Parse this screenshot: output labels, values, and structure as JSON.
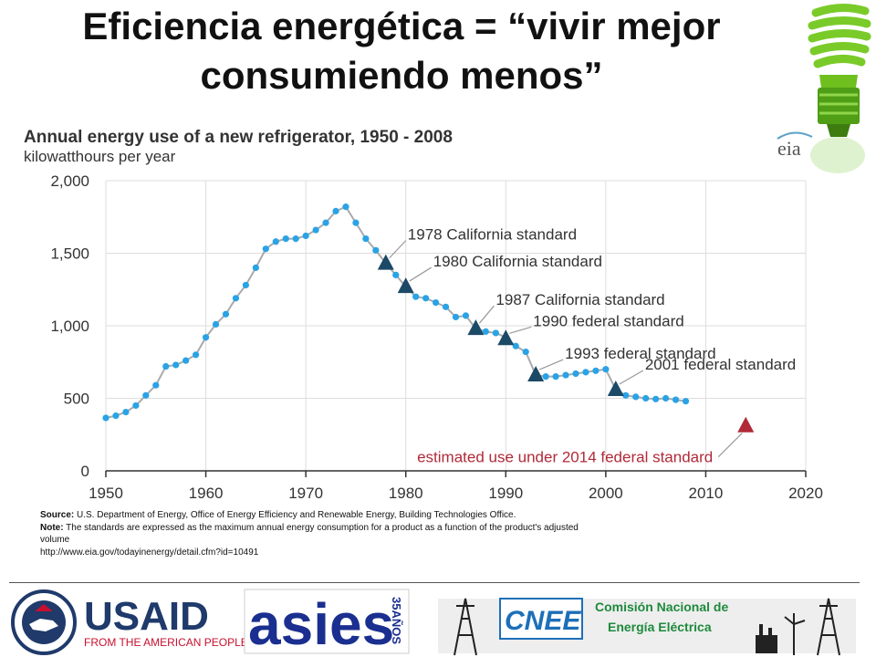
{
  "slide": {
    "title_line1": "Eficiencia energética = “vivir mejor",
    "title_line2": "consumiendo menos”"
  },
  "chart_data": {
    "type": "line",
    "title": "Annual energy use of a new refrigerator, 1950 - 2008",
    "ylabel": "kilowatthours per year",
    "xlabel": "",
    "xlim": [
      1950,
      2020
    ],
    "ylim": [
      0,
      2000
    ],
    "x_ticks": [
      1950,
      1960,
      1970,
      1980,
      1990,
      2000,
      2010,
      2020
    ],
    "y_ticks": [
      0,
      500,
      1000,
      1500,
      2000
    ],
    "y_tick_labels": [
      "0",
      "500",
      "1,000",
      "1,500",
      "2,000"
    ],
    "grid": true,
    "series": [
      {
        "x": [
          1950,
          1951,
          1952,
          1953,
          1954,
          1955,
          1956,
          1957,
          1958,
          1959,
          1960,
          1961,
          1962,
          1963,
          1964,
          1965,
          1966,
          1967,
          1968,
          1969,
          1970,
          1971,
          1972,
          1973,
          1974,
          1975,
          1976,
          1977,
          1978,
          1979,
          1980,
          1981,
          1982,
          1983,
          1984,
          1985,
          1986,
          1987,
          1988,
          1989,
          1990,
          1991,
          1992,
          1993,
          1994,
          1995,
          1996,
          1997,
          1998,
          1999,
          2000,
          2001,
          2002,
          2003,
          2004,
          2005,
          2006,
          2007,
          2008
        ],
        "y": [
          365,
          380,
          405,
          450,
          520,
          590,
          720,
          730,
          760,
          800,
          920,
          1010,
          1080,
          1190,
          1280,
          1400,
          1530,
          1580,
          1600,
          1600,
          1620,
          1660,
          1710,
          1790,
          1820,
          1710,
          1600,
          1520,
          1430,
          1350,
          1270,
          1200,
          1190,
          1160,
          1130,
          1060,
          1070,
          980,
          960,
          950,
          920,
          860,
          820,
          660,
          650,
          650,
          660,
          670,
          680,
          690,
          700,
          560,
          520,
          510,
          500,
          495,
          500,
          490,
          480
        ],
        "color": "#29a3e6"
      }
    ],
    "standards": [
      {
        "year": 1978,
        "value": 1430,
        "label": "1978 California standard"
      },
      {
        "year": 1980,
        "value": 1270,
        "label": "1980 California standard"
      },
      {
        "year": 1987,
        "value": 980,
        "label": "1987 California standard"
      },
      {
        "year": 1990,
        "value": 910,
        "label": "1990 federal standard"
      },
      {
        "year": 1993,
        "value": 660,
        "label": "1993 federal standard"
      },
      {
        "year": 2001,
        "value": 560,
        "label": "2001 federal standard"
      }
    ],
    "estimate": {
      "year": 2014,
      "value": 310,
      "label": "estimated use under 2014 federal standard"
    },
    "colors": {
      "points": "#29a3e6",
      "line": "#aaaaaa",
      "standard": "#1c4966",
      "estimate": "#b02a38",
      "grid": "#dddddd"
    }
  },
  "notes": {
    "source_label": "Source:",
    "source_text": "U.S. Department of Energy, Office of Energy Efficiency and Renewable Energy, Building Technologies Office.",
    "note_label": "Note:",
    "note_text": "The standards are expressed as the maximum annual energy consumption for a product as a function of the product's adjusted volume",
    "url": "http://www.eia.gov/todayinenergy/detail.cfm?id=10491"
  },
  "logos": {
    "eia": "eia",
    "usaid_name": "USAID",
    "usaid_tagline": "FROM THE AMERICAN PEOPLE",
    "asies": "asies",
    "asies_years": "35AÑOS",
    "cnee_acronym": "CNEE",
    "cnee_line1": "Comisión Nacional de",
    "cnee_line2": "Energía Eléctrica"
  }
}
